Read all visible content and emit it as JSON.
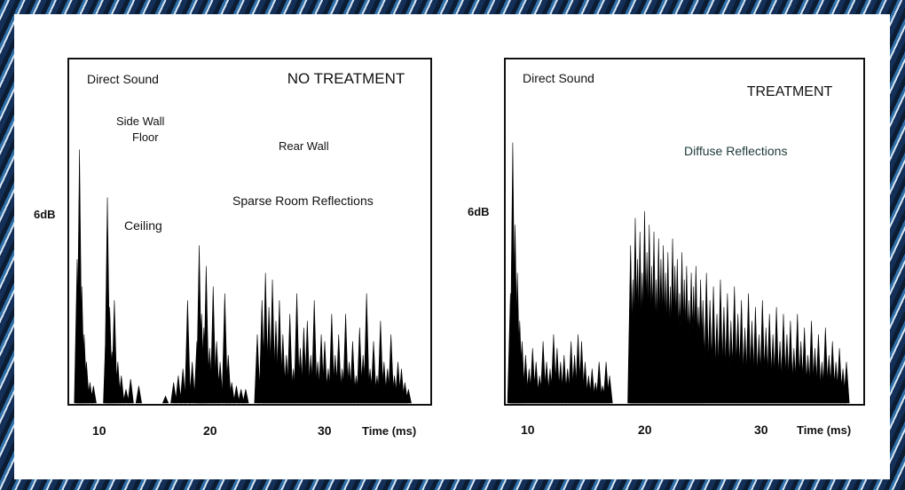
{
  "chart_data": [
    {
      "type": "bar",
      "title": "NO TREATMENT",
      "xlabel": "Time (ms)",
      "ylabel": "6dB",
      "xlim": [
        7.5,
        38
      ],
      "ylim": [
        0,
        1
      ],
      "xticks": [
        10,
        20,
        30
      ],
      "annotations": [
        "Direct Sound",
        "Side Wall",
        "Floor",
        "Ceiling",
        "Rear Wall",
        "Sparse Room Reflections"
      ],
      "x": [
        8.7,
        8.9,
        9.1,
        9.3,
        9.5,
        9.8,
        10.1,
        11.2,
        11.3,
        11.5,
        11.7,
        11.9,
        12.2,
        12.5,
        12.9,
        13.3,
        14.0,
        16.3,
        17.0,
        17.4,
        17.8,
        18.2,
        18.6,
        19.0,
        19.2,
        19.4,
        19.6,
        19.8,
        20.1,
        20.4,
        20.7,
        21.0,
        21.4,
        21.7,
        22.0,
        22.4,
        22.8,
        23.2,
        24.2,
        24.6,
        24.9,
        25.2,
        25.5,
        25.8,
        26.1,
        26.4,
        26.7,
        27.0,
        27.3,
        27.6,
        27.9,
        28.2,
        28.5,
        28.8,
        29.1,
        29.4,
        29.7,
        30.0,
        30.3,
        30.6,
        30.9,
        31.2,
        31.5,
        31.8,
        32.1,
        32.4,
        32.7,
        33.0,
        33.3,
        33.6,
        33.9,
        34.2,
        34.5,
        34.8,
        35.1,
        35.4,
        35.7,
        36.0,
        36.3,
        36.6,
        36.9,
        37.2
      ],
      "values": [
        0.42,
        0.74,
        0.34,
        0.2,
        0.12,
        0.06,
        0.05,
        0.24,
        0.6,
        0.28,
        0.15,
        0.3,
        0.12,
        0.08,
        0.04,
        0.07,
        0.05,
        0.02,
        0.06,
        0.08,
        0.1,
        0.3,
        0.12,
        0.18,
        0.46,
        0.26,
        0.22,
        0.4,
        0.16,
        0.34,
        0.18,
        0.12,
        0.32,
        0.14,
        0.06,
        0.05,
        0.04,
        0.04,
        0.2,
        0.3,
        0.38,
        0.28,
        0.36,
        0.24,
        0.3,
        0.2,
        0.14,
        0.26,
        0.1,
        0.32,
        0.16,
        0.22,
        0.24,
        0.14,
        0.3,
        0.12,
        0.2,
        0.18,
        0.1,
        0.26,
        0.14,
        0.2,
        0.1,
        0.26,
        0.12,
        0.18,
        0.08,
        0.22,
        0.14,
        0.32,
        0.1,
        0.18,
        0.08,
        0.24,
        0.12,
        0.1,
        0.2,
        0.08,
        0.12,
        0.1,
        0.06,
        0.04
      ]
    },
    {
      "type": "bar",
      "title": "TREATMENT",
      "xlabel": "Time (ms)",
      "ylabel": "6dB",
      "xlim": [
        7.5,
        38
      ],
      "ylim": [
        0,
        1
      ],
      "xticks": [
        10,
        20,
        30
      ],
      "annotations": [
        "Direct Sound",
        "Diffuse Reflections"
      ],
      "x": [
        8.5,
        8.7,
        8.9,
        9.1,
        9.3,
        9.5,
        9.8,
        10.1,
        10.4,
        10.7,
        11.0,
        11.3,
        11.6,
        11.9,
        12.2,
        12.5,
        12.8,
        13.1,
        13.4,
        13.7,
        14.0,
        14.3,
        14.6,
        14.9,
        15.2,
        15.5,
        15.8,
        16.1,
        16.4,
        16.7,
        17.0,
        18.8,
        19.0,
        19.2,
        19.4,
        19.6,
        19.8,
        20.0,
        20.2,
        20.4,
        20.6,
        20.8,
        21.0,
        21.2,
        21.4,
        21.6,
        21.8,
        22.0,
        22.2,
        22.4,
        22.6,
        22.8,
        23.0,
        23.2,
        23.4,
        23.6,
        23.8,
        24.0,
        24.2,
        24.4,
        24.6,
        24.8,
        25.0,
        25.3,
        25.6,
        25.9,
        26.2,
        26.5,
        26.8,
        27.1,
        27.4,
        27.7,
        28.0,
        28.3,
        28.6,
        28.9,
        29.2,
        29.5,
        29.8,
        30.1,
        30.4,
        30.7,
        31.0,
        31.3,
        31.6,
        31.9,
        32.2,
        32.5,
        32.8,
        33.1,
        33.4,
        33.7,
        34.0,
        34.3,
        34.6,
        34.9,
        35.2,
        35.5,
        35.8,
        36.1,
        36.4,
        36.7,
        37.0,
        37.3
      ],
      "values": [
        0.32,
        0.76,
        0.52,
        0.38,
        0.24,
        0.18,
        0.14,
        0.1,
        0.16,
        0.12,
        0.08,
        0.18,
        0.12,
        0.1,
        0.2,
        0.16,
        0.12,
        0.14,
        0.1,
        0.18,
        0.14,
        0.2,
        0.18,
        0.12,
        0.08,
        0.1,
        0.06,
        0.12,
        0.05,
        0.12,
        0.08,
        0.46,
        0.36,
        0.54,
        0.42,
        0.5,
        0.38,
        0.56,
        0.44,
        0.52,
        0.4,
        0.5,
        0.36,
        0.48,
        0.42,
        0.46,
        0.38,
        0.44,
        0.34,
        0.48,
        0.4,
        0.42,
        0.32,
        0.44,
        0.36,
        0.4,
        0.3,
        0.38,
        0.34,
        0.4,
        0.28,
        0.36,
        0.3,
        0.38,
        0.3,
        0.34,
        0.26,
        0.36,
        0.28,
        0.32,
        0.24,
        0.34,
        0.26,
        0.3,
        0.22,
        0.32,
        0.24,
        0.28,
        0.2,
        0.3,
        0.22,
        0.26,
        0.2,
        0.28,
        0.18,
        0.26,
        0.2,
        0.24,
        0.16,
        0.26,
        0.18,
        0.22,
        0.14,
        0.24,
        0.16,
        0.2,
        0.12,
        0.22,
        0.14,
        0.18,
        0.12,
        0.16,
        0.1,
        0.12
      ]
    }
  ]
}
